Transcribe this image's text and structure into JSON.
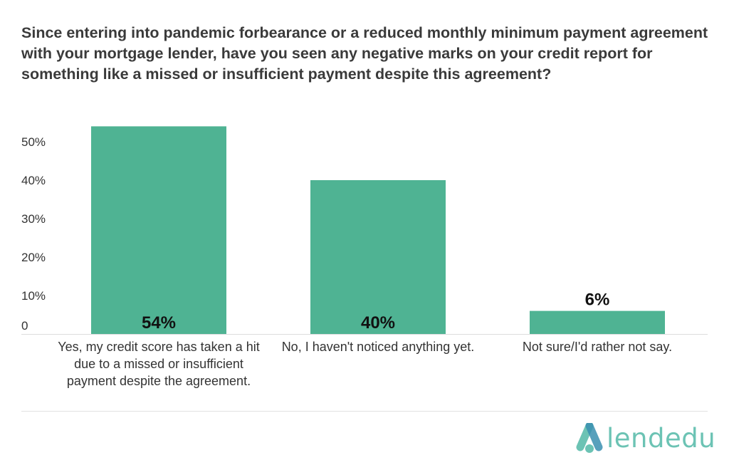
{
  "title": "Since entering into pandemic forbearance or a reduced monthly minimum payment agreement with your mortgage lender, have you seen any negative marks on your credit report for something like a missed or insufficient payment despite this agreement?",
  "colors": {
    "bar": "#4fb393",
    "axis": "#dddddd",
    "logo": "#6cc3b4"
  },
  "logo": {
    "icon": "lendedu-logo-icon",
    "text": "lendedu"
  },
  "chart_data": {
    "type": "bar",
    "categories": [
      "Yes, my credit score has taken a hit due to a missed or insufficient payment despite the agreement.",
      "No, I haven't noticed anything yet.",
      "Not sure/I'd rather not say."
    ],
    "values": [
      54,
      40,
      6
    ],
    "data_labels": [
      "54%",
      "40%",
      "6%"
    ],
    "y_ticks": [
      0,
      10,
      20,
      30,
      40,
      50
    ],
    "y_tick_labels": [
      "0",
      "10%",
      "20%",
      "30%",
      "40%",
      "50%"
    ],
    "ylim": [
      0,
      54
    ],
    "grid": false,
    "legend": "none"
  }
}
